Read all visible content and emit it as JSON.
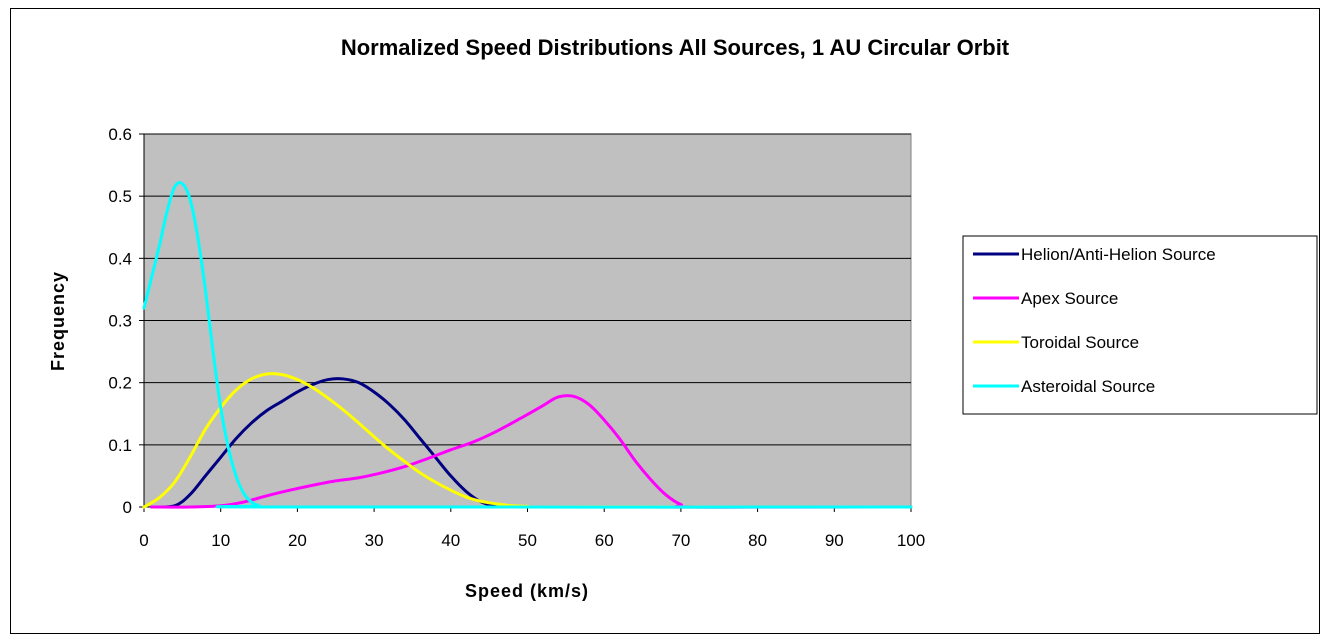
{
  "chart_data": {
    "type": "line",
    "title": "Normalized Speed Distributions All Sources, 1 AU Circular Orbit",
    "xlabel": "Speed (km/s)",
    "ylabel": "Frequency",
    "xlim": [
      0,
      100
    ],
    "ylim": [
      0,
      0.6
    ],
    "x_ticks": [
      "0",
      "10",
      "20",
      "30",
      "40",
      "50",
      "60",
      "70",
      "80",
      "90",
      "100"
    ],
    "y_ticks": [
      "0",
      "0.1",
      "0.2",
      "0.3",
      "0.4",
      "0.5",
      "0.6"
    ],
    "grid": "horizontal",
    "plot_background": "#c0c0c0",
    "legend_position": "right",
    "series": [
      {
        "name": "Helion/Anti-Helion Source",
        "color": "#000080",
        "points": [
          [
            1,
            0
          ],
          [
            4,
            0.002
          ],
          [
            6,
            0.02
          ],
          [
            8,
            0.05
          ],
          [
            10,
            0.08
          ],
          [
            12,
            0.11
          ],
          [
            14,
            0.135
          ],
          [
            16,
            0.155
          ],
          [
            18,
            0.17
          ],
          [
            20,
            0.185
          ],
          [
            22,
            0.197
          ],
          [
            24,
            0.205
          ],
          [
            26,
            0.206
          ],
          [
            28,
            0.2
          ],
          [
            30,
            0.185
          ],
          [
            32,
            0.165
          ],
          [
            34,
            0.14
          ],
          [
            36,
            0.11
          ],
          [
            38,
            0.08
          ],
          [
            40,
            0.05
          ],
          [
            42,
            0.025
          ],
          [
            44,
            0.008
          ],
          [
            46,
            0.002
          ],
          [
            50,
            0
          ],
          [
            100,
            0
          ]
        ]
      },
      {
        "name": "Apex Source",
        "color": "#ff00ff",
        "points": [
          [
            1,
            0
          ],
          [
            6,
            0
          ],
          [
            10,
            0.002
          ],
          [
            13,
            0.008
          ],
          [
            16,
            0.018
          ],
          [
            19,
            0.027
          ],
          [
            22,
            0.035
          ],
          [
            25,
            0.042
          ],
          [
            28,
            0.047
          ],
          [
            31,
            0.055
          ],
          [
            34,
            0.065
          ],
          [
            37,
            0.078
          ],
          [
            40,
            0.092
          ],
          [
            43,
            0.105
          ],
          [
            46,
            0.122
          ],
          [
            49,
            0.142
          ],
          [
            52,
            0.163
          ],
          [
            54,
            0.177
          ],
          [
            56,
            0.178
          ],
          [
            58,
            0.165
          ],
          [
            60,
            0.14
          ],
          [
            62,
            0.11
          ],
          [
            64,
            0.075
          ],
          [
            66,
            0.045
          ],
          [
            68,
            0.02
          ],
          [
            70,
            0.004
          ],
          [
            72,
            0
          ],
          [
            100,
            0
          ]
        ]
      },
      {
        "name": "Toroidal Source",
        "color": "#ffff00",
        "points": [
          [
            0,
            0
          ],
          [
            2,
            0.015
          ],
          [
            4,
            0.04
          ],
          [
            6,
            0.08
          ],
          [
            8,
            0.125
          ],
          [
            10,
            0.16
          ],
          [
            12,
            0.188
          ],
          [
            14,
            0.206
          ],
          [
            16,
            0.214
          ],
          [
            18,
            0.213
          ],
          [
            20,
            0.205
          ],
          [
            22,
            0.192
          ],
          [
            24,
            0.175
          ],
          [
            26,
            0.156
          ],
          [
            28,
            0.135
          ],
          [
            30,
            0.113
          ],
          [
            32,
            0.092
          ],
          [
            34,
            0.073
          ],
          [
            36,
            0.055
          ],
          [
            38,
            0.04
          ],
          [
            40,
            0.027
          ],
          [
            42,
            0.016
          ],
          [
            44,
            0.009
          ],
          [
            46,
            0.005
          ],
          [
            48,
            0.002
          ],
          [
            50,
            0.001
          ],
          [
            54,
            0
          ],
          [
            100,
            0
          ]
        ]
      },
      {
        "name": "Asteroidal Source",
        "color": "#00ffff",
        "points": [
          [
            0,
            0.32
          ],
          [
            1,
            0.37
          ],
          [
            2,
            0.42
          ],
          [
            3,
            0.475
          ],
          [
            4,
            0.515
          ],
          [
            5,
            0.52
          ],
          [
            6,
            0.495
          ],
          [
            7,
            0.435
          ],
          [
            8,
            0.35
          ],
          [
            9,
            0.25
          ],
          [
            10,
            0.16
          ],
          [
            11,
            0.095
          ],
          [
            12,
            0.05
          ],
          [
            13,
            0.022
          ],
          [
            14,
            0.008
          ],
          [
            15,
            0.002
          ],
          [
            16,
            0
          ],
          [
            100,
            0
          ]
        ]
      }
    ]
  }
}
